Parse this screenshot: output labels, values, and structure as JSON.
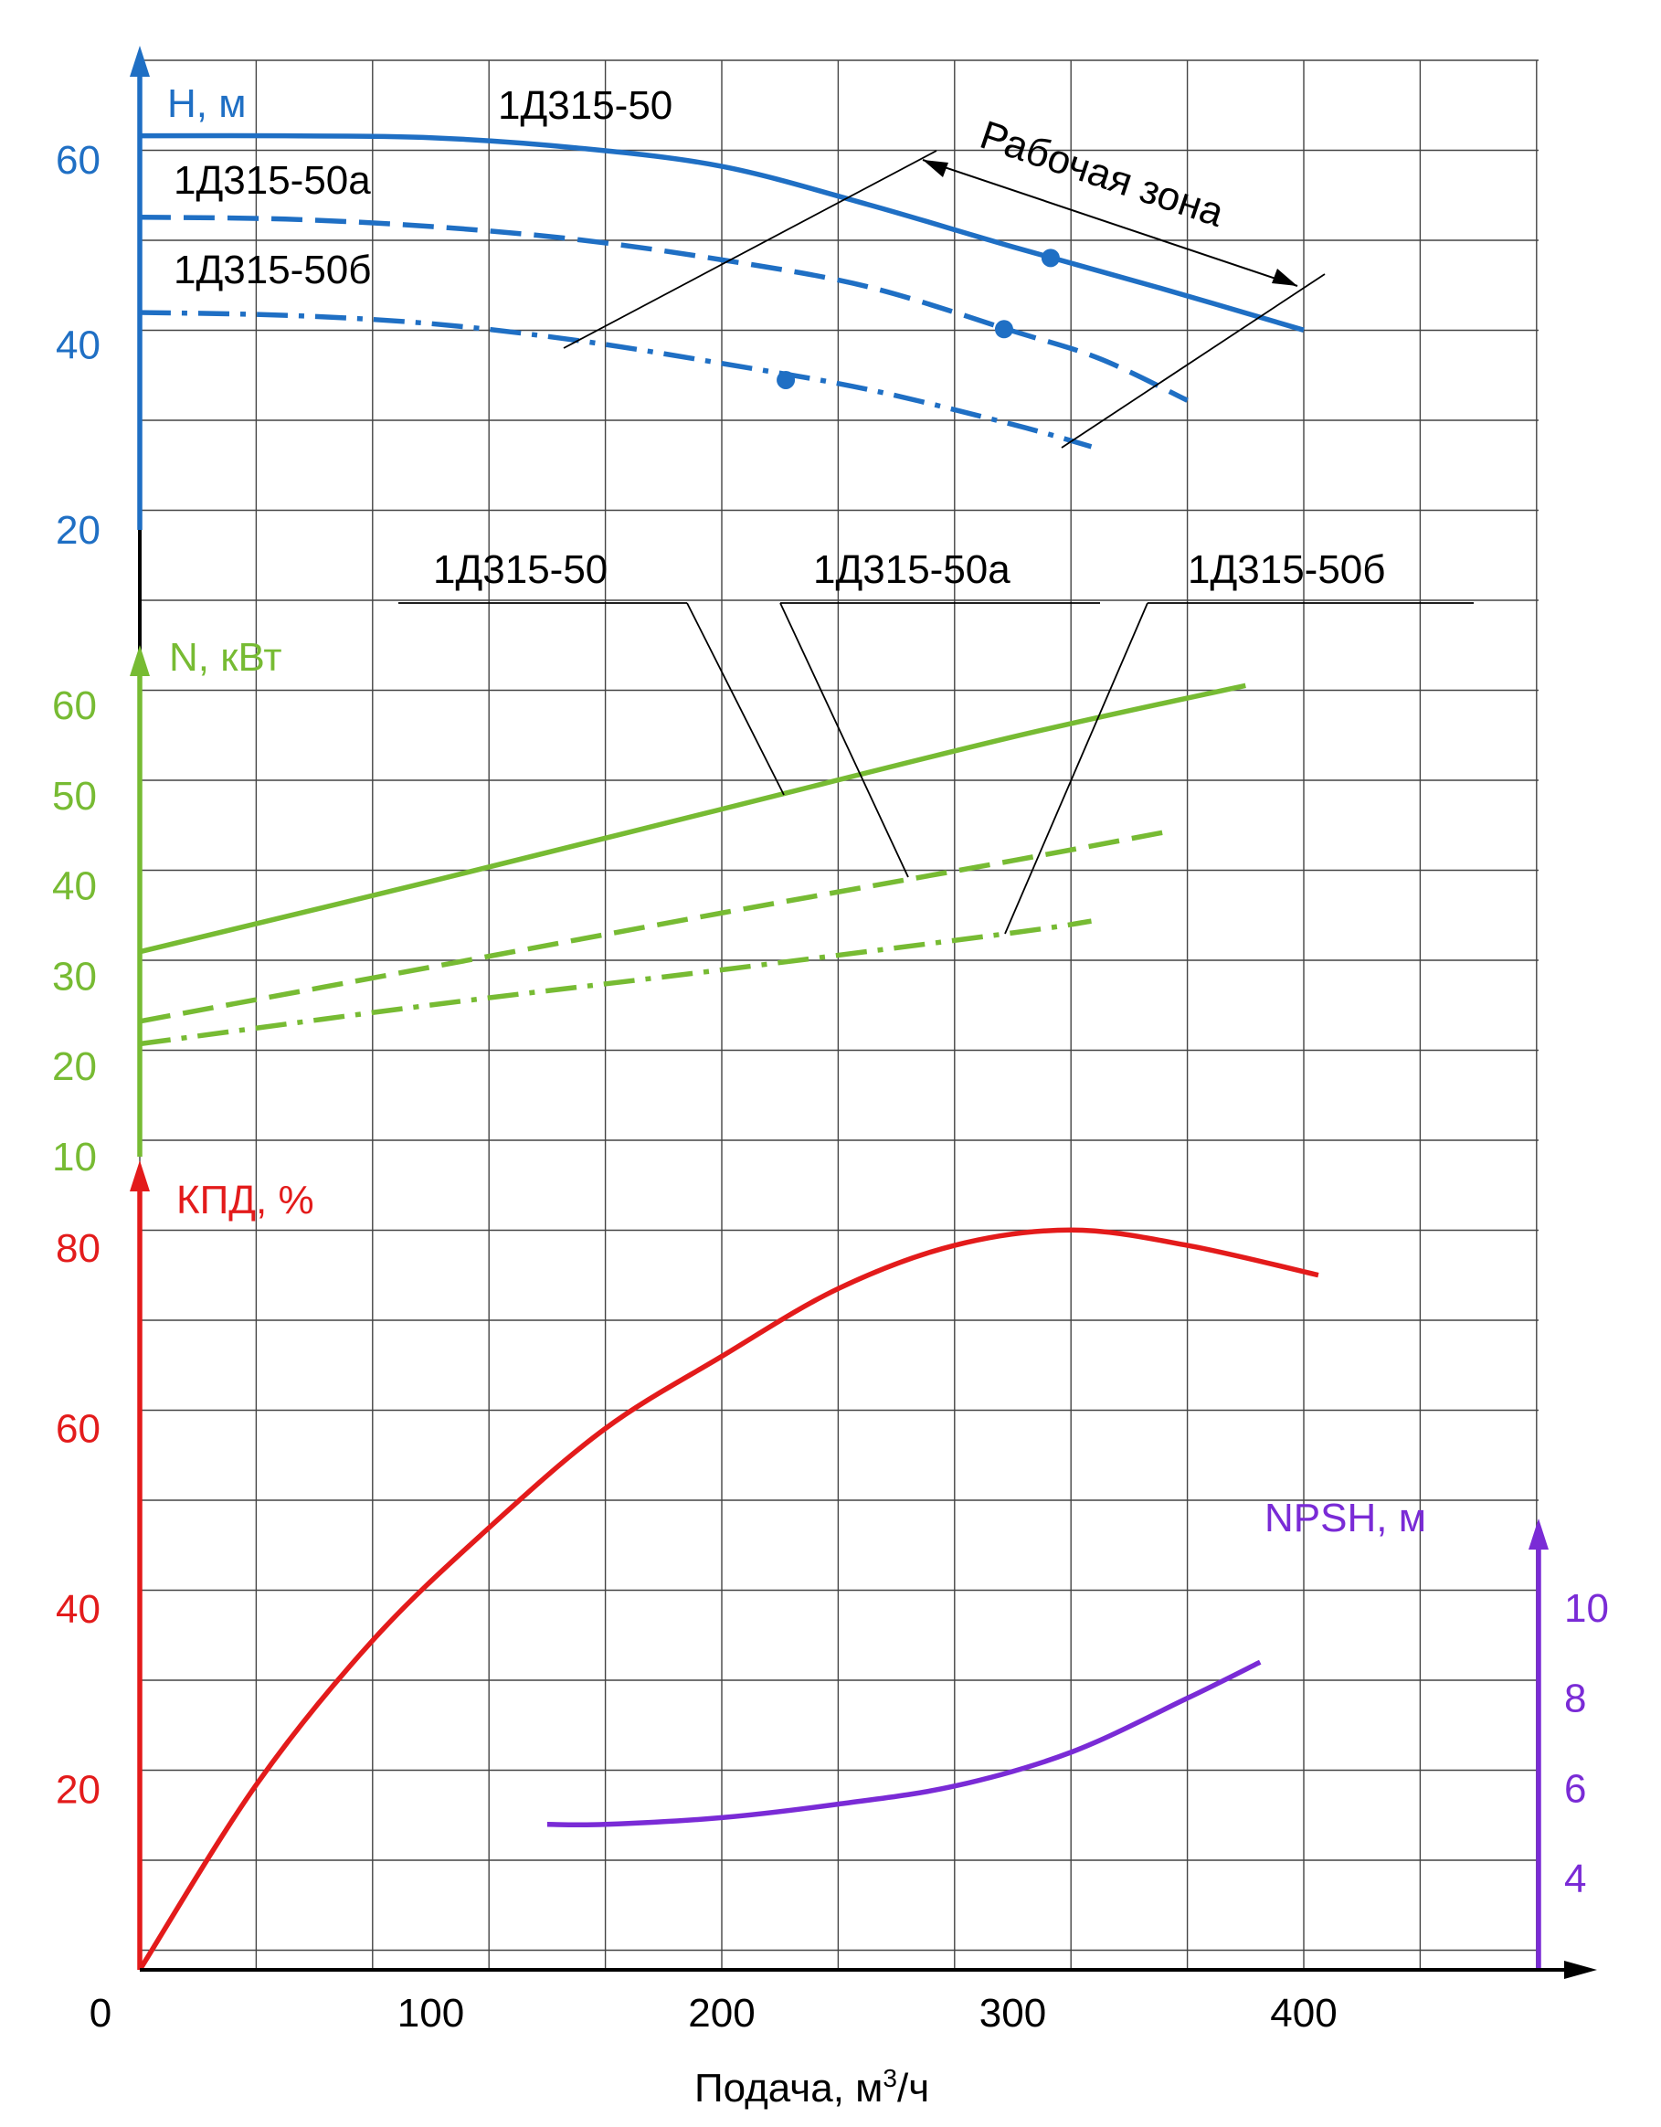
{
  "colors": {
    "head": "#1f6fc4",
    "power": "#77bb33",
    "efficiency": "#e31b1b",
    "npsh": "#7a2bd6",
    "grid": "#444444",
    "ink": "#000000"
  },
  "chart_data": {
    "type": "line",
    "xlabel_main": "Подача, м",
    "xlabel_sup": "3",
    "xlabel_tail": "/ч",
    "xlim": [
      0,
      480
    ],
    "x_ticks": [
      {
        "value": 0,
        "label": "0"
      },
      {
        "value": 100,
        "label": "100"
      },
      {
        "value": 200,
        "label": "200"
      },
      {
        "value": 300,
        "label": "300"
      },
      {
        "value": 400,
        "label": "400"
      }
    ],
    "grid": true,
    "panels": {
      "head": {
        "ylabel": "H, м",
        "ylim": [
          20,
          70
        ],
        "y_ticks": [
          {
            "value": 20,
            "label": "20"
          },
          {
            "value": 40,
            "label": "40"
          },
          {
            "value": 60,
            "label": "60"
          }
        ],
        "series": [
          {
            "name": "1Д315-50",
            "style": "solid",
            "x": [
              0,
              50,
              100,
              150,
              200,
              250,
              300,
              350,
              400
            ],
            "y": [
              62.6,
              62.6,
              62.4,
              61.3,
              59.3,
              55.2,
              50.6,
              46.2,
              41.6
            ],
            "marker": {
              "x": 313,
              "y": 49.4
            }
          },
          {
            "name": "1Д315-50а",
            "style": "dashed",
            "x": [
              0,
              50,
              100,
              150,
              200,
              250,
              300,
              330,
              360
            ],
            "y": [
              53.8,
              53.6,
              52.8,
              51.4,
              49.2,
              46.3,
              41.5,
              38.5,
              34.0
            ],
            "marker": {
              "x": 297,
              "y": 41.7
            }
          },
          {
            "name": "1Д315-50б",
            "style": "dashdot",
            "x": [
              0,
              50,
              100,
              150,
              200,
              250,
              300,
              327
            ],
            "y": [
              43.5,
              43.2,
              42.3,
              40.5,
              38.0,
              35.2,
              31.4,
              29.0
            ],
            "marker": {
              "x": 222,
              "y": 36.2
            }
          }
        ],
        "curve_labels": [
          "1Д315-50",
          "1Д315-50а",
          "1Д315-50б"
        ],
        "annotation": "Рабочая зона"
      },
      "power": {
        "ylabel": "N, кВт",
        "ylim": [
          10,
          72
        ],
        "y_ticks": [
          {
            "value": 10,
            "label": "10"
          },
          {
            "value": 20,
            "label": "20"
          },
          {
            "value": 30,
            "label": "30"
          },
          {
            "value": 40,
            "label": "40"
          },
          {
            "value": 50,
            "label": "50"
          },
          {
            "value": 60,
            "label": "60"
          }
        ],
        "series": [
          {
            "name": "1Д315-50",
            "style": "solid",
            "x": [
              0,
              100,
              200,
              300,
              380
            ],
            "y": [
              32.7,
              40.5,
              48.5,
              56.5,
              62.2
            ]
          },
          {
            "name": "1Д315-50а",
            "style": "dashed",
            "x": [
              0,
              100,
              200,
              300,
              353
            ],
            "y": [
              25.0,
              31.0,
              37.0,
              42.8,
              46.0
            ]
          },
          {
            "name": "1Д315-50б",
            "style": "dashdot",
            "x": [
              0,
              100,
              200,
              300,
              327
            ],
            "y": [
              22.5,
              26.8,
              30.7,
              34.8,
              36.1
            ]
          }
        ],
        "curve_labels": [
          "1Д315-50",
          "1Д315-50а",
          "1Д315-50б"
        ]
      },
      "efficiency": {
        "ylabel": "КПД, %",
        "ylim": [
          0,
          90
        ],
        "y_ticks": [
          {
            "value": 20,
            "label": "20"
          },
          {
            "value": 40,
            "label": "40"
          },
          {
            "value": 60,
            "label": "60"
          },
          {
            "value": 80,
            "label": "80"
          }
        ],
        "series": [
          {
            "name": "КПД",
            "style": "solid",
            "x": [
              0,
              40,
              80,
              120,
              160,
              200,
              240,
              280,
              320,
              360,
              405
            ],
            "y": [
              0,
              20.5,
              36.5,
              49.0,
              60.0,
              68.0,
              75.5,
              80.3,
              82.0,
              80.3,
              77.0
            ]
          }
        ]
      },
      "npsh": {
        "ylabel": "NPSH, м",
        "ylim": [
          2,
          12
        ],
        "y_ticks": [
          {
            "value": 4,
            "label": "4"
          },
          {
            "value": 6,
            "label": "6"
          },
          {
            "value": 8,
            "label": "8"
          },
          {
            "value": 10,
            "label": "10"
          }
        ],
        "series": [
          {
            "name": "NPSH",
            "style": "solid",
            "x": [
              140,
              160,
              200,
              240,
              280,
              320,
              360,
              385
            ],
            "y": [
              5.2,
              5.2,
              5.35,
              5.65,
              6.05,
              6.8,
              8.0,
              8.8
            ]
          }
        ]
      }
    }
  }
}
